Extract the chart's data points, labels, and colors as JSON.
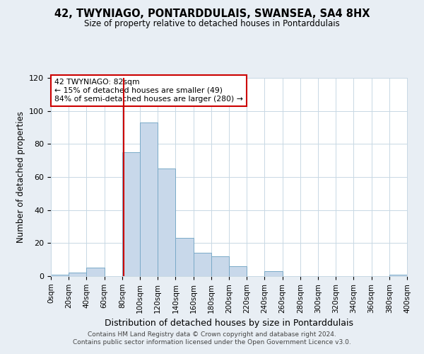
{
  "title": "42, TWYNIAGO, PONTARDDULAIS, SWANSEA, SA4 8HX",
  "subtitle": "Size of property relative to detached houses in Pontarddulais",
  "xlabel": "Distribution of detached houses by size in Pontarddulais",
  "ylabel": "Number of detached properties",
  "bin_edges": [
    0,
    20,
    40,
    60,
    80,
    100,
    120,
    140,
    160,
    180,
    200,
    220,
    240,
    260,
    280,
    300,
    320,
    340,
    360,
    380,
    400
  ],
  "bin_counts": [
    1,
    2,
    5,
    0,
    75,
    93,
    65,
    23,
    14,
    12,
    6,
    0,
    3,
    0,
    0,
    0,
    0,
    0,
    0,
    1
  ],
  "bar_color": "#c8d8ea",
  "bar_edge_color": "#7aaac8",
  "marker_x": 82,
  "marker_color": "#cc0000",
  "annotation_line1": "42 TWYNIAGO: 82sqm",
  "annotation_line2": "← 15% of detached houses are smaller (49)",
  "annotation_line3": "84% of semi-detached houses are larger (280) →",
  "annotation_box_color": "#cc0000",
  "ylim": [
    0,
    120
  ],
  "xlim": [
    0,
    400
  ],
  "xtick_labels": [
    "0sqm",
    "20sqm",
    "40sqm",
    "60sqm",
    "80sqm",
    "100sqm",
    "120sqm",
    "140sqm",
    "160sqm",
    "180sqm",
    "200sqm",
    "220sqm",
    "240sqm",
    "260sqm",
    "280sqm",
    "300sqm",
    "320sqm",
    "340sqm",
    "360sqm",
    "380sqm",
    "400sqm"
  ],
  "footer_line1": "Contains HM Land Registry data © Crown copyright and database right 2024.",
  "footer_line2": "Contains public sector information licensed under the Open Government Licence v3.0.",
  "background_color": "#e8eef4",
  "plot_bg_color": "#ffffff",
  "grid_color": "#c8d8e4"
}
